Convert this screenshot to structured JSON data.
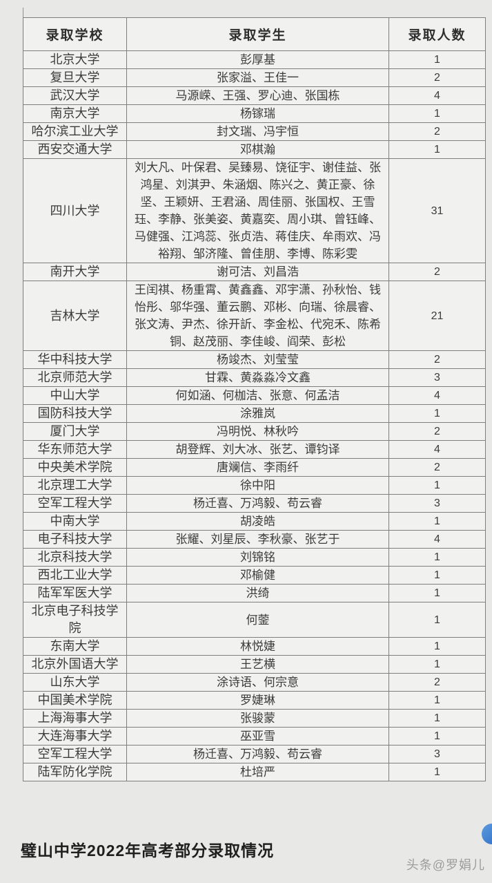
{
  "table": {
    "headers": [
      "录取学校",
      "录取学生",
      "录取人数"
    ],
    "rows": [
      {
        "school": "北京大学",
        "students": "彭厚基",
        "count": "1"
      },
      {
        "school": "复旦大学",
        "students": "张家溢、王佳一",
        "count": "2"
      },
      {
        "school": "武汉大学",
        "students": "马源嵘、王强、罗心迪、张国栋",
        "count": "4"
      },
      {
        "school": "南京大学",
        "students": "杨镓瑞",
        "count": "1"
      },
      {
        "school": "哈尔滨工业大学",
        "students": "封文瑞、冯宇恒",
        "count": "2"
      },
      {
        "school": "西安交通大学",
        "students": "邓棋瀚",
        "count": "1"
      },
      {
        "school": "四川大学",
        "students": "刘大凡、叶保君、吴臻易、饶征宇、谢佳益、张鸿星、刘淇尹、朱涵烟、陈兴之、黄正豪、徐坚、王颖妍、王君涵、周佳丽、张国权、王雪珏、李静、张美姿、黄嘉奕、周小琪、曾钰峰、马健强、江鸿蕊、张贞浩、蒋佳庆、牟雨欢、冯裕翔、邹济隆、曾佳朋、李博、陈彩雯",
        "count": "31"
      },
      {
        "school": "南开大学",
        "students": "谢可洁、刘昌浩",
        "count": "2"
      },
      {
        "school": "吉林大学",
        "students": "王闰祺、杨重霄、黄鑫鑫、邓宇潇、孙秋怡、钱怡彤、邬华强、董云鹏、邓彬、向瑞、徐晨睿、张文涛、尹杰、徐开訢、李金松、代宛禾、陈希铜、赵茂丽、李佳峻、阎荣、彭松",
        "count": "21"
      },
      {
        "school": "华中科技大学",
        "students": "杨竣杰、刘莹莹",
        "count": "2"
      },
      {
        "school": "北京师范大学",
        "students": "甘霖、黄淼淼冷文鑫",
        "count": "3"
      },
      {
        "school": "中山大学",
        "students": "何如涵、何枷洁、张意、何孟洁",
        "count": "4"
      },
      {
        "school": "国防科技大学",
        "students": "涂雅岚",
        "count": "1"
      },
      {
        "school": "厦门大学",
        "students": "冯明悦、林秋吟",
        "count": "2"
      },
      {
        "school": "华东师范大学",
        "students": "胡登辉、刘大冰、张艺、谭钧译",
        "count": "4"
      },
      {
        "school": "中央美术学院",
        "students": "唐斓信、李雨纤",
        "count": "2"
      },
      {
        "school": "北京理工大学",
        "students": "徐中阳",
        "count": "1"
      },
      {
        "school": "空军工程大学",
        "students": "杨迁喜、万鸿毅、苟云睿",
        "count": "3"
      },
      {
        "school": "中南大学",
        "students": "胡凌皓",
        "count": "1"
      },
      {
        "school": "电子科技大学",
        "students": "张耀、刘星辰、李秋豪、张艺于",
        "count": "4"
      },
      {
        "school": "北京科技大学",
        "students": "刘锦铭",
        "count": "1"
      },
      {
        "school": "西北工业大学",
        "students": "邓榆健",
        "count": "1"
      },
      {
        "school": "陆军军医大学",
        "students": "洪绮",
        "count": "1"
      },
      {
        "school": "北京电子科技学院",
        "students": "何蓥",
        "count": "1"
      },
      {
        "school": "东南大学",
        "students": "林悦婕",
        "count": "1"
      },
      {
        "school": "北京外国语大学",
        "students": "王艺横",
        "count": "1"
      },
      {
        "school": "山东大学",
        "students": "涂诗语、何宗意",
        "count": "2"
      },
      {
        "school": "中国美术学院",
        "students": "罗婕琳",
        "count": "1"
      },
      {
        "school": "上海海事大学",
        "students": "张骏蒙",
        "count": "1"
      },
      {
        "school": "大连海事大学",
        "students": "巫亚雪",
        "count": "1"
      },
      {
        "school": "空军工程大学",
        "students": "杨迁喜、万鸿毅、苟云睿",
        "count": "3"
      },
      {
        "school": "陆军防化学院",
        "students": "杜培严",
        "count": "1"
      }
    ]
  },
  "caption": "璧山中学2022年高考部分录取情况",
  "watermark": "头条@罗娟儿",
  "icons": {
    "float_button": "blue-circle-button"
  },
  "colors": {
    "float_button_blue": "#2e6cc4",
    "page_background": "#e8e8e6",
    "cell_background": "#f1f1ef",
    "border_gray": "#7e7e7e"
  }
}
